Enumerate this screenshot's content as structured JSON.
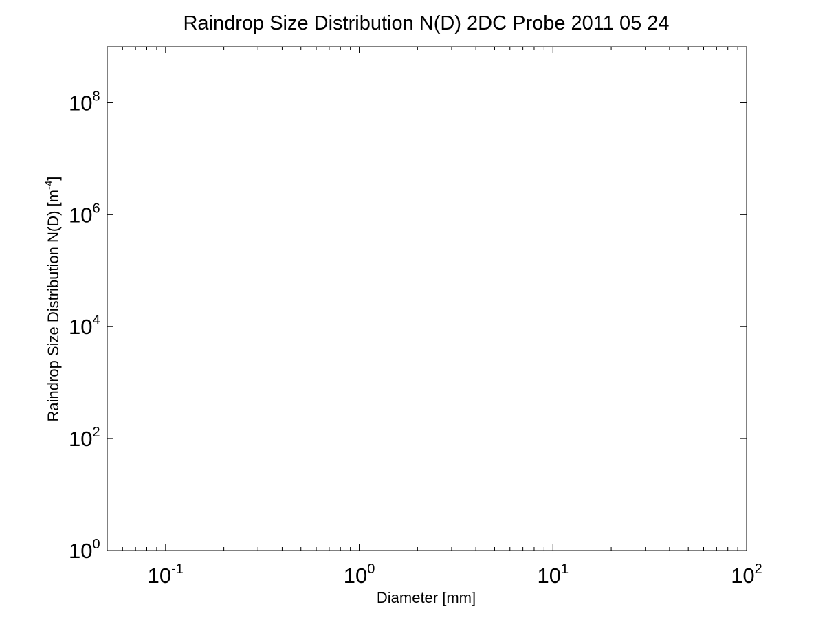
{
  "chart_data": {
    "type": "line",
    "title": "Raindrop Size Distribution N(D) 2DC Probe 2011 05 24",
    "xlabel": "Diameter [mm]",
    "ylabel": "Raindrop Size Distribution N(D) [m",
    "ylabel_superscript": "-4",
    "ylabel_suffix": "]",
    "x_scale": "log",
    "y_scale": "log",
    "xlim": [
      0.05,
      100
    ],
    "ylim": [
      1,
      1000000000
    ],
    "x_ticks": [
      {
        "value": 0.1,
        "base": "10",
        "exp": "-1"
      },
      {
        "value": 1,
        "base": "10",
        "exp": "0"
      },
      {
        "value": 10,
        "base": "10",
        "exp": "1"
      },
      {
        "value": 100,
        "base": "10",
        "exp": "2"
      }
    ],
    "y_ticks": [
      {
        "value": 1,
        "base": "10",
        "exp": "0"
      },
      {
        "value": 100,
        "base": "10",
        "exp": "2"
      },
      {
        "value": 10000,
        "base": "10",
        "exp": "4"
      },
      {
        "value": 1000000,
        "base": "10",
        "exp": "6"
      },
      {
        "value": 100000000,
        "base": "10",
        "exp": "8"
      }
    ],
    "grid": false,
    "legend": "none",
    "series": [],
    "colors": {
      "axes": "#000000",
      "background": "#ffffff"
    }
  }
}
